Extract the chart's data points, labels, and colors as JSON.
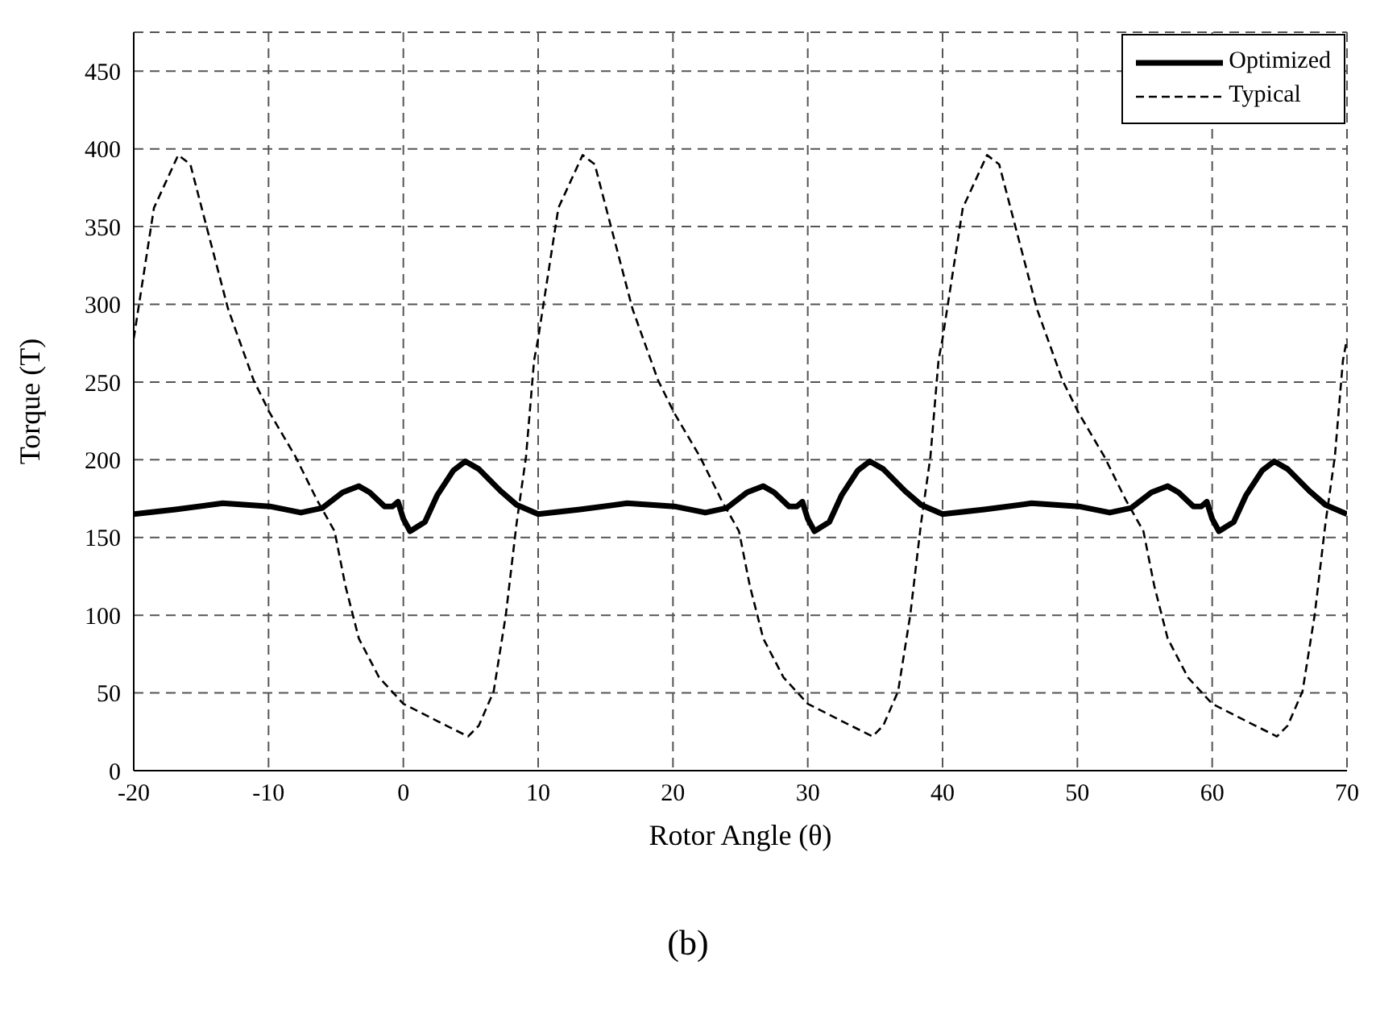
{
  "chart_data": {
    "type": "line",
    "xlabel": "Rotor Angle (θ)",
    "ylabel": "Torque (T)",
    "annotations": [
      "(b)"
    ],
    "xlim": [
      -20,
      70
    ],
    "xticks": [
      -20,
      -10,
      0,
      10,
      20,
      30,
      40,
      50,
      60,
      70
    ],
    "ylim": [
      0,
      475
    ],
    "yticks": [
      0,
      50,
      100,
      150,
      200,
      250,
      300,
      350,
      400,
      450
    ],
    "grid": true,
    "legend": "top right",
    "marker": "none",
    "series": [
      {
        "name": "Optimized",
        "color": "#000000",
        "line_style": "solid",
        "x": [
          -20,
          -16.9,
          -13.4,
          -9.9,
          -7.6,
          -6,
          -4.5,
          -3.3,
          -2.5,
          -1.4,
          -0.8,
          -0.4,
          0,
          0.5,
          1.6,
          2.5,
          3.7,
          4.6,
          5.6,
          7.2,
          8.4,
          10,
          13.1,
          16.6,
          20.1,
          22.4,
          24,
          25.5,
          26.7,
          27.5,
          28.6,
          29.2,
          29.6,
          30,
          30.5,
          31.6,
          32.5,
          33.7,
          34.6,
          35.6,
          37.2,
          38.4,
          40,
          43.1,
          46.6,
          50.1,
          52.4,
          54,
          55.5,
          56.7,
          57.5,
          58.6,
          59.2,
          59.6,
          60,
          60.5,
          61.6,
          62.5,
          63.7,
          64.6,
          65.6,
          67.2,
          68.4,
          70
        ],
        "values": [
          165,
          168,
          172,
          170,
          166,
          169,
          179,
          183,
          179,
          170,
          170,
          173,
          162,
          154,
          160,
          177,
          193,
          199,
          194,
          180,
          171,
          165,
          168,
          172,
          170,
          166,
          169,
          179,
          183,
          179,
          170,
          170,
          173,
          162,
          154,
          160,
          177,
          193,
          199,
          194,
          180,
          171,
          165,
          168,
          172,
          170,
          166,
          169,
          179,
          183,
          179,
          170,
          170,
          173,
          162,
          154,
          160,
          177,
          193,
          199,
          194,
          180,
          171,
          165
        ]
      },
      {
        "name": "Typical",
        "color": "#000000",
        "line_style": "dashed",
        "x": [
          -20,
          -18.5,
          -16.7,
          -15.8,
          -14.6,
          -13,
          -11.1,
          -9.9,
          -8,
          -6.4,
          -5.1,
          -4.3,
          -3.3,
          -1.8,
          0,
          2.5,
          4.8,
          5.6,
          6.7,
          7.6,
          8.4,
          9.1,
          9.7,
          10,
          11.5,
          13.3,
          14.2,
          15.4,
          17,
          18.9,
          20.1,
          22,
          23.6,
          24.9,
          25.7,
          26.7,
          28.2,
          30,
          32.5,
          34.8,
          35.6,
          36.7,
          37.6,
          38.4,
          39.1,
          39.7,
          40,
          41.5,
          43.3,
          44.2,
          45.4,
          47,
          48.9,
          50.1,
          52,
          53.6,
          54.9,
          55.7,
          56.7,
          58.2,
          60,
          62.5,
          64.8,
          65.6,
          66.7,
          67.6,
          68.4,
          69.1,
          69.7,
          70
        ],
        "values": [
          278,
          362,
          396,
          390,
          350,
          297,
          251,
          230,
          202,
          174,
          154,
          119,
          85,
          60,
          43,
          32,
          22,
          29,
          51,
          100,
          159,
          202,
          264,
          278,
          362,
          396,
          390,
          350,
          297,
          251,
          230,
          202,
          174,
          154,
          119,
          85,
          60,
          43,
          32,
          22,
          29,
          51,
          100,
          159,
          202,
          264,
          278,
          362,
          396,
          390,
          350,
          297,
          251,
          230,
          202,
          174,
          154,
          119,
          85,
          60,
          43,
          32,
          22,
          29,
          51,
          100,
          159,
          202,
          264,
          278
        ]
      }
    ]
  }
}
